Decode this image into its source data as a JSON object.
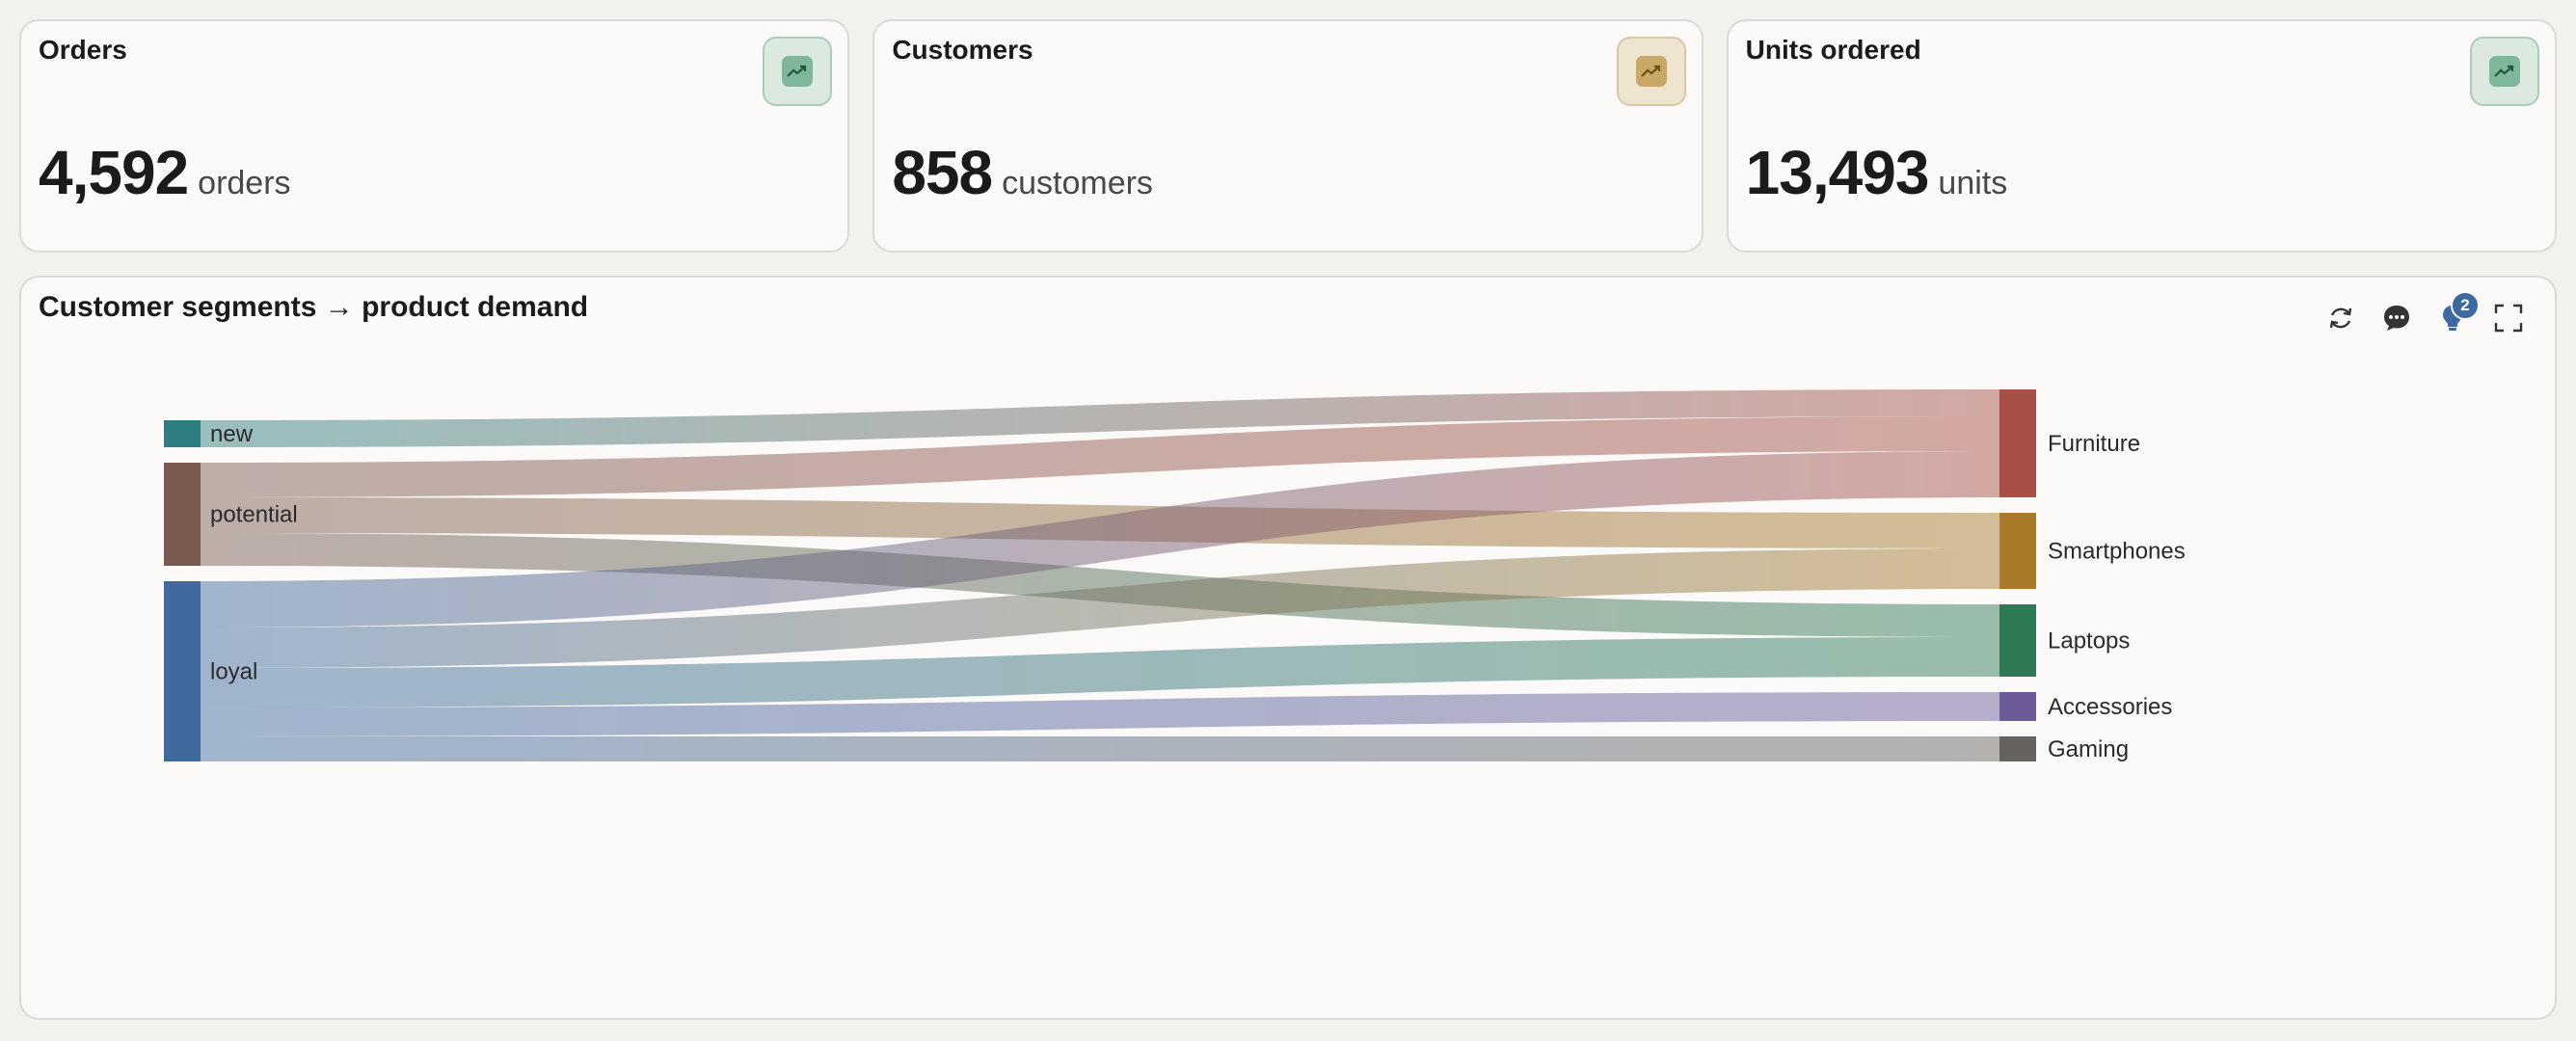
{
  "kpis": [
    {
      "title": "Orders",
      "value": "4,592",
      "unit": "orders",
      "icon": "trend-up-icon",
      "tint": "green"
    },
    {
      "title": "Customers",
      "value": "858",
      "unit": "customers",
      "icon": "trend-up-icon",
      "tint": "amber"
    },
    {
      "title": "Units ordered",
      "value": "13,493",
      "unit": "units",
      "icon": "trend-up-icon",
      "tint": "green"
    }
  ],
  "chart": {
    "title": "Customer segments → product demand",
    "toolbar": {
      "refresh_icon": "refresh-icon",
      "comment_icon": "comment-icon",
      "insight_icon": "lightbulb-icon",
      "insight_count": "2",
      "expand_icon": "expand-icon"
    }
  },
  "colors": {
    "new": "#2e7d80",
    "potential": "#7a5a50",
    "loyal": "#3e6a9e",
    "Furniture": "#a84f46",
    "Smartphones": "#a87a2a",
    "Laptops": "#2e7a55",
    "Accessories": "#6d5a98",
    "Gaming": "#66625e"
  },
  "chart_data": {
    "type": "sankey",
    "sources": [
      {
        "name": "new",
        "value": 28
      },
      {
        "name": "potential",
        "value": 107
      },
      {
        "name": "loyal",
        "value": 187
      }
    ],
    "targets": [
      {
        "name": "Furniture",
        "value": 112
      },
      {
        "name": "Smartphones",
        "value": 79
      },
      {
        "name": "Laptops",
        "value": 75
      },
      {
        "name": "Accessories",
        "value": 30
      },
      {
        "name": "Gaming",
        "value": 26
      }
    ],
    "links": [
      {
        "source": "new",
        "target": "Furniture",
        "value": 28
      },
      {
        "source": "potential",
        "target": "Furniture",
        "value": 36
      },
      {
        "source": "potential",
        "target": "Smartphones",
        "value": 37
      },
      {
        "source": "potential",
        "target": "Laptops",
        "value": 34
      },
      {
        "source": "loyal",
        "target": "Furniture",
        "value": 48
      },
      {
        "source": "loyal",
        "target": "Smartphones",
        "value": 42
      },
      {
        "source": "loyal",
        "target": "Laptops",
        "value": 41
      },
      {
        "source": "loyal",
        "target": "Accessories",
        "value": 30
      },
      {
        "source": "loyal",
        "target": "Gaming",
        "value": 26
      }
    ]
  }
}
